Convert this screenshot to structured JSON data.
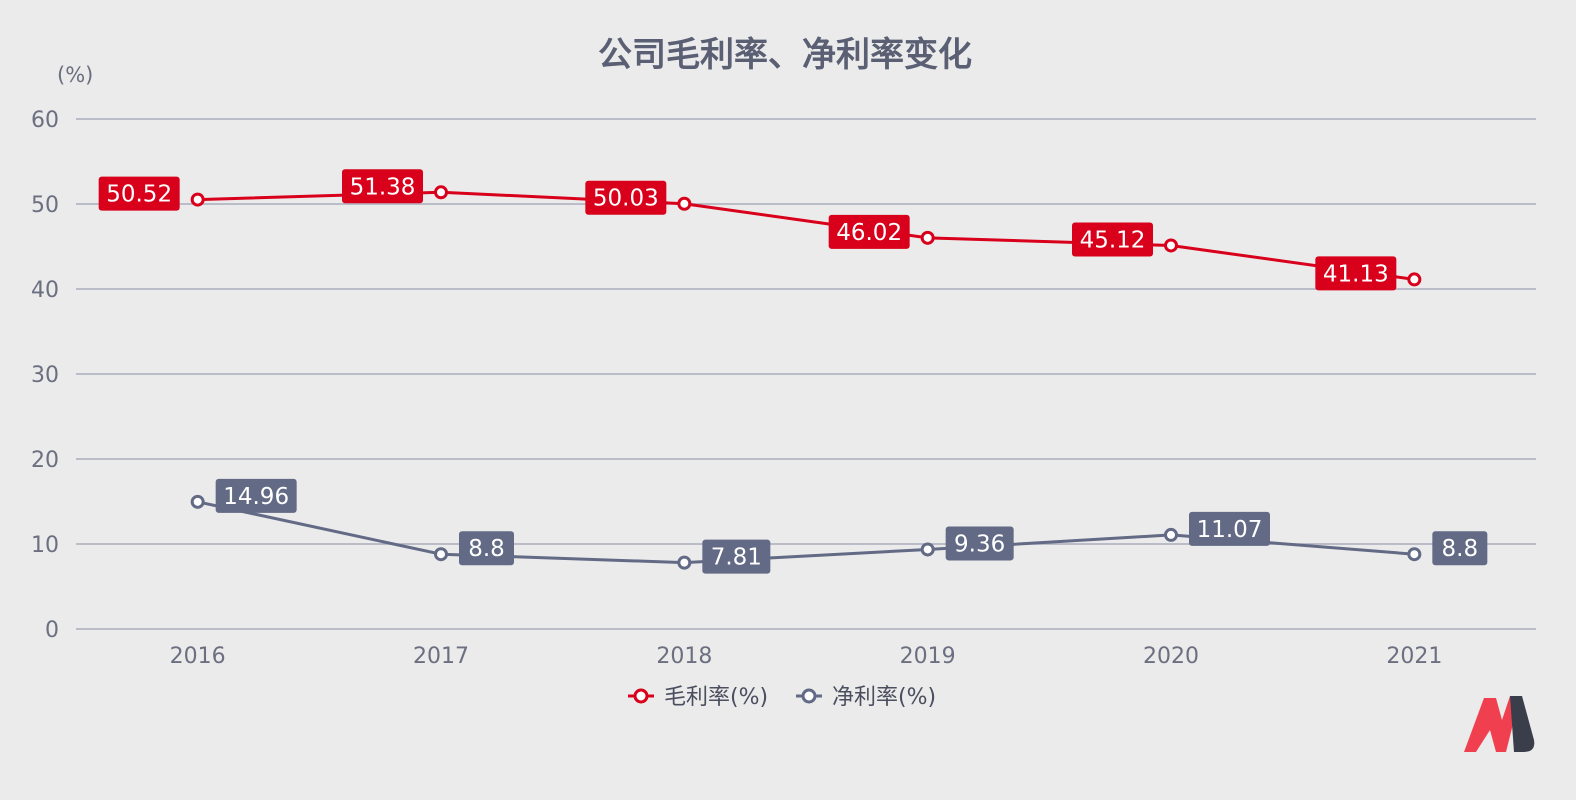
{
  "chart_data": {
    "type": "line",
    "title": "公司毛利率、净利率变化",
    "ylabel": "(%)",
    "categories": [
      "2016",
      "2017",
      "2018",
      "2019",
      "2020",
      "2021"
    ],
    "ylim": [
      0,
      60
    ],
    "yticks": [
      "0",
      "10",
      "20",
      "30",
      "40",
      "50",
      "60"
    ],
    "grid": true,
    "legend_position": "bottom",
    "series": [
      {
        "name": "毛利率(%)",
        "color": "#d9001b",
        "values": [
          50.52,
          51.38,
          50.03,
          46.02,
          45.12,
          41.13
        ],
        "labels": [
          "50.52",
          "51.38",
          "50.03",
          "46.02",
          "45.12",
          "41.13"
        ],
        "label_side": "left"
      },
      {
        "name": "净利率(%)",
        "color": "#626a85",
        "values": [
          14.96,
          8.8,
          7.81,
          9.36,
          11.07,
          8.8
        ],
        "labels": [
          "14.96",
          "8.8",
          "7.81",
          "9.36",
          "11.07",
          "8.8"
        ],
        "label_side": "right"
      }
    ]
  },
  "logo": {
    "icon": "brand-logo-icon",
    "colors": [
      "#f0404f",
      "#3a3d4a"
    ]
  }
}
